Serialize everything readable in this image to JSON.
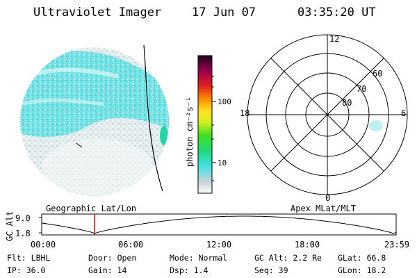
{
  "header": {
    "instrument": "Ultraviolet Imager",
    "date": "17 Jun 07",
    "time": "03:35:20 UT"
  },
  "colorbar": {
    "label": "photon cm⁻²s⁻¹",
    "ticks": [
      "100",
      "10"
    ]
  },
  "polar_plot": {
    "mlt_labels": {
      "top": "12",
      "left": "18",
      "right": "6",
      "bottom": "0"
    },
    "lat_labels": [
      "60",
      "70",
      "80"
    ]
  },
  "altitude_strip": {
    "left_label": "Geographic Lat/Lon",
    "right_label": "Apex MLat/MLT",
    "y_axis_label": "GC Alt",
    "y_ticks": [
      "9.0",
      "1.8"
    ],
    "x_ticks": [
      "00:00",
      "06:00",
      "12:00",
      "18:00",
      "23:59"
    ],
    "current_time_hours": 3.59
  },
  "info": {
    "row1": [
      {
        "key": "Flt:",
        "value": "LBHL"
      },
      {
        "key": "Door:",
        "value": "Open"
      },
      {
        "key": "Mode:",
        "value": "Normal"
      },
      {
        "key": "GC Alt:",
        "value": "2.2 Re"
      },
      {
        "key": "GLat:",
        "value": "66.8"
      }
    ],
    "row2": [
      {
        "key": "IP:",
        "value": "36.0"
      },
      {
        "key": "Gain:",
        "value": "14"
      },
      {
        "key": "Dsp:",
        "value": "1.4"
      },
      {
        "key": "Seq:",
        "value": "39"
      },
      {
        "key": "GLon:",
        "value": "18.2"
      }
    ]
  },
  "colors": {
    "image_cyan": "#33dde0",
    "image_gray": "#c8d8dc",
    "marker_red": "#cc0000"
  }
}
